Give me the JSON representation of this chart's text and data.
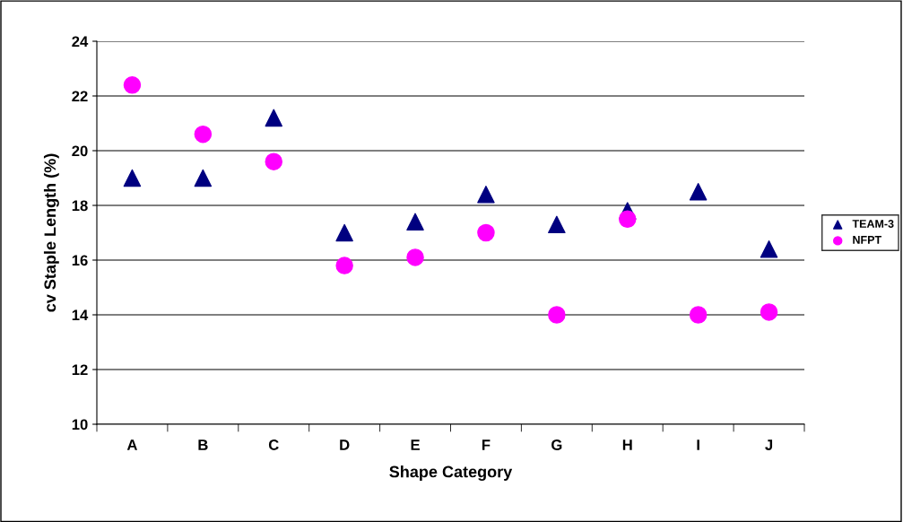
{
  "chart_data": {
    "type": "scatter",
    "xlabel": "Shape Category",
    "ylabel": "cv Staple Length (%)",
    "categories": [
      "A",
      "B",
      "C",
      "D",
      "E",
      "F",
      "G",
      "H",
      "I",
      "J"
    ],
    "series": [
      {
        "name": "TEAM-3",
        "color": "#000080",
        "marker": "triangle",
        "values": [
          19.0,
          19.0,
          21.2,
          17.0,
          17.4,
          18.4,
          17.3,
          17.8,
          18.5,
          16.4
        ]
      },
      {
        "name": "NFPT",
        "color": "#ff00ff",
        "marker": "circle",
        "values": [
          22.4,
          20.6,
          19.6,
          15.8,
          16.1,
          17.0,
          14.0,
          17.5,
          14.0,
          14.1
        ]
      }
    ],
    "ylim": [
      10,
      24
    ],
    "yticks": [
      10,
      12,
      14,
      16,
      18,
      20,
      22,
      24
    ],
    "grid": "y",
    "legend": "right"
  }
}
